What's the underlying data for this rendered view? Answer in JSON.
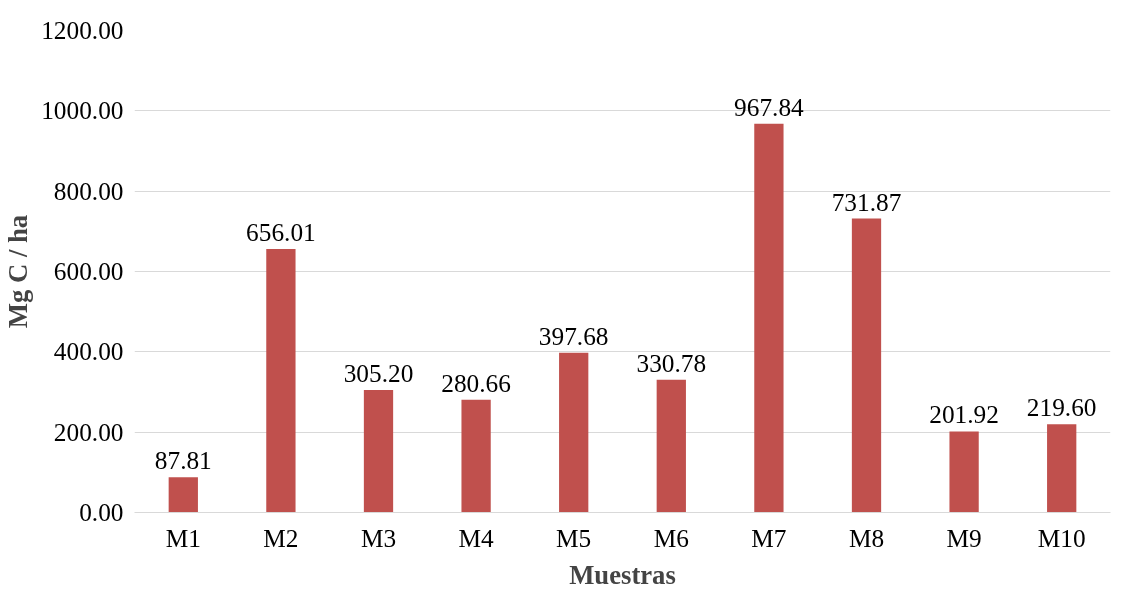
{
  "chart_data": {
    "type": "bar",
    "xlabel": "Muestras",
    "ylabel": "Mg C / ha",
    "categories": [
      "M1",
      "M2",
      "M3",
      "M4",
      "M5",
      "M6",
      "M7",
      "M8",
      "M9",
      "M10"
    ],
    "values": [
      87.81,
      656.01,
      305.2,
      280.66,
      397.68,
      330.78,
      967.84,
      731.87,
      201.92,
      219.6
    ],
    "color": "#c0504d",
    "data_labels": true,
    "value_labels": [
      "87.81",
      "656.01",
      "305.20",
      "280.66",
      "397.68",
      "330.78",
      "967.84",
      "731.87",
      "201.92",
      "219.60"
    ],
    "ylim": [
      0,
      1200
    ],
    "yticks": [
      {
        "value": 0,
        "label": "0.00"
      },
      {
        "value": 200,
        "label": "200.00"
      },
      {
        "value": 400,
        "label": "400.00"
      },
      {
        "value": 600,
        "label": "600.00"
      },
      {
        "value": 800,
        "label": "800.00"
      },
      {
        "value": 1000,
        "label": "1000.00"
      },
      {
        "value": 1200,
        "label": "1200.00"
      }
    ],
    "grid": "y"
  }
}
